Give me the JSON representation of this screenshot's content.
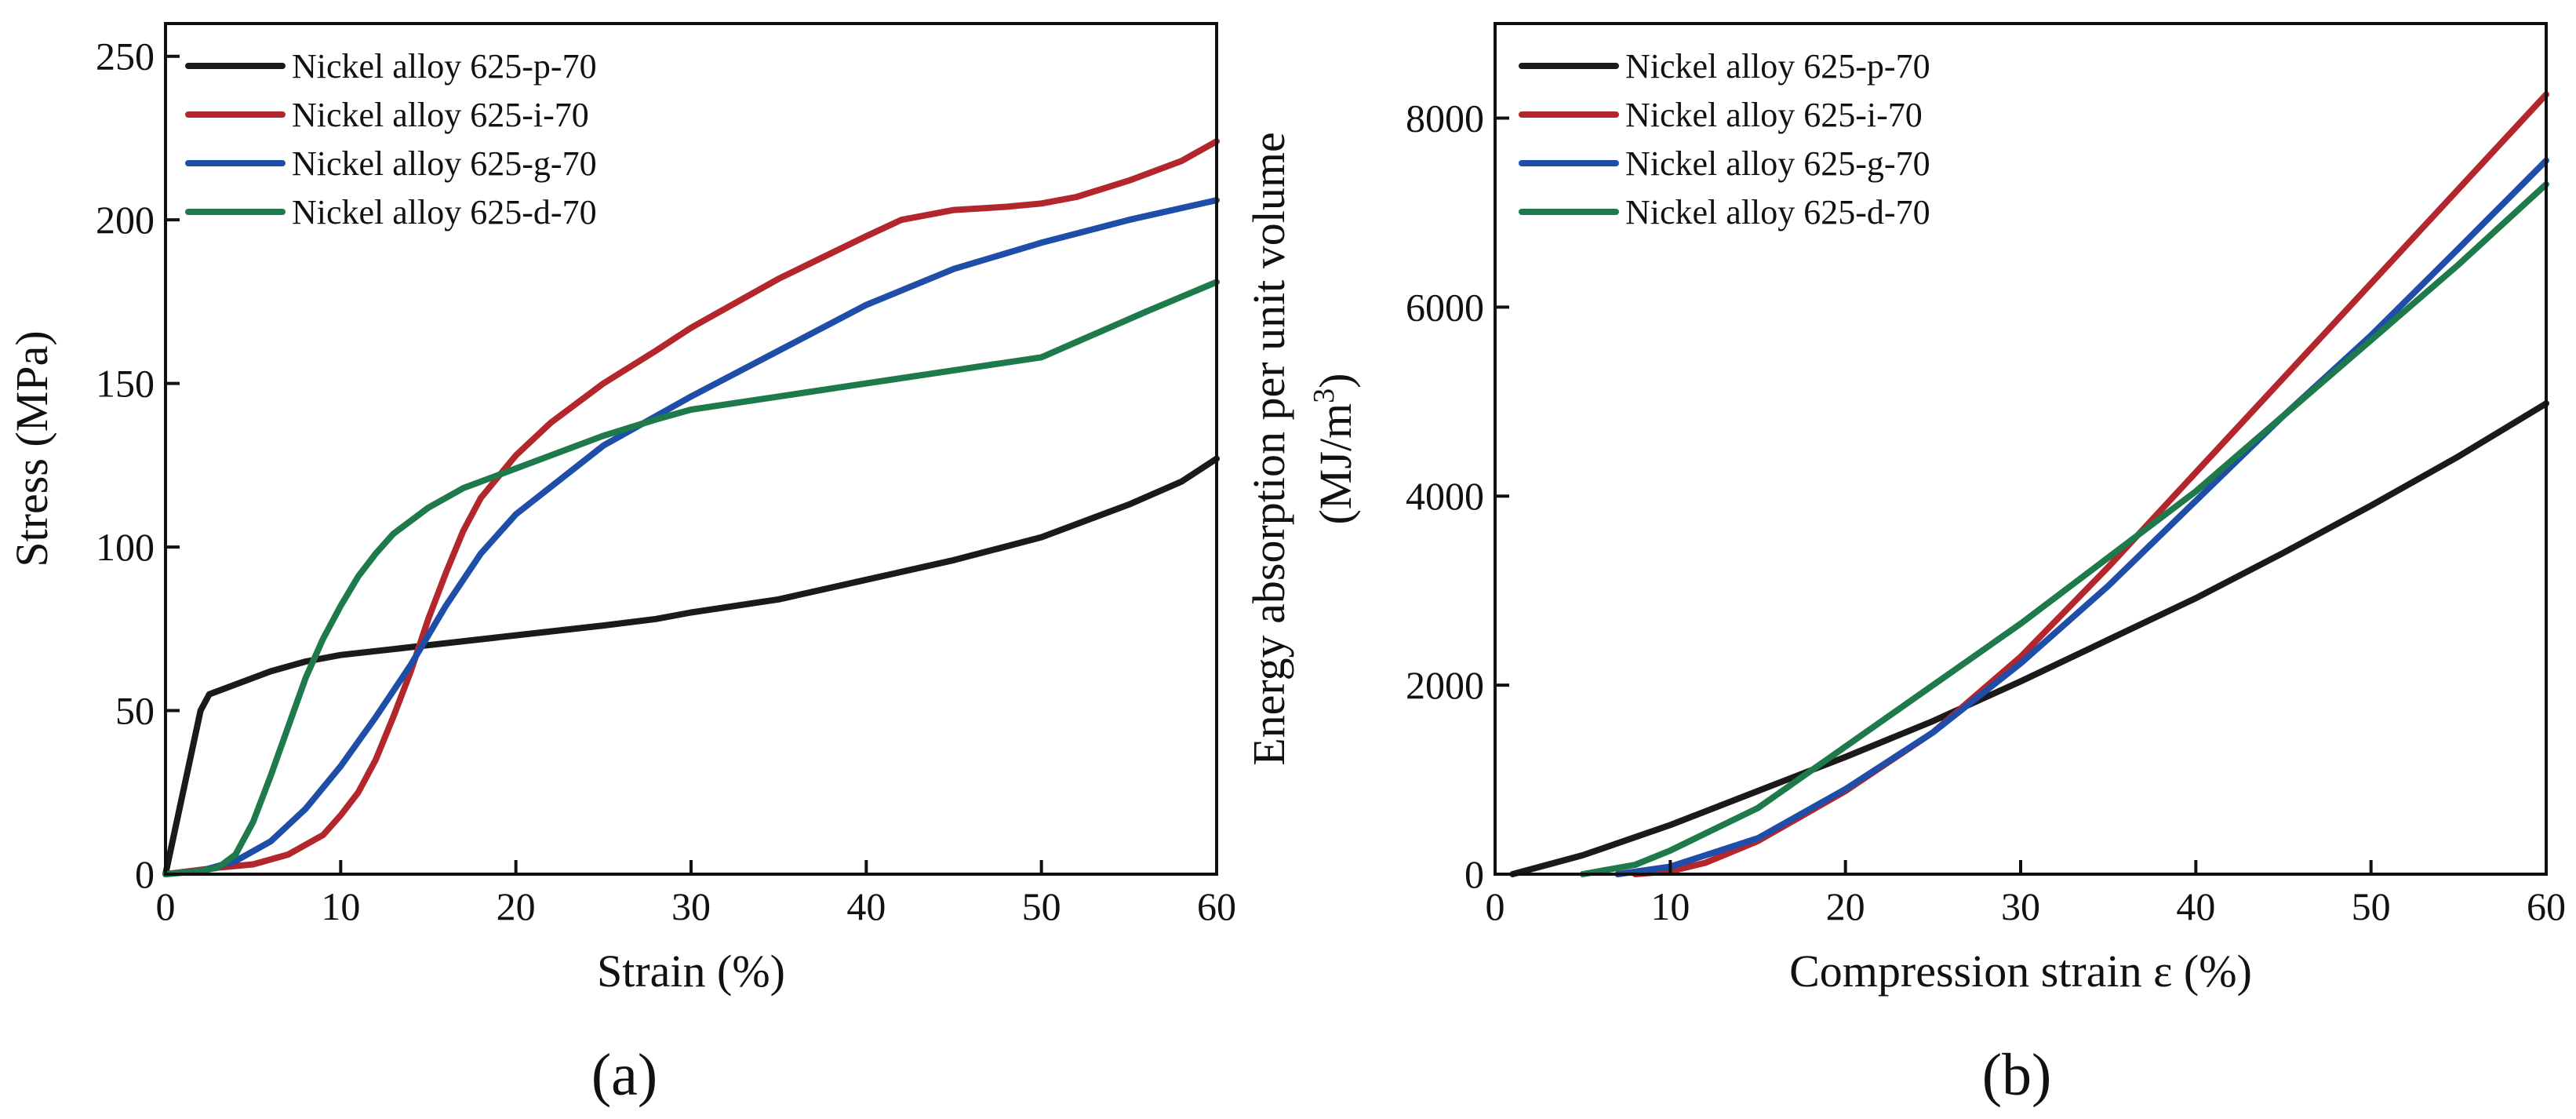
{
  "colors": {
    "p": "#1a1a1a",
    "i": "#b3262c",
    "g": "#1f4ea8",
    "d": "#1e7a4a"
  },
  "chart_data": [
    {
      "type": "line",
      "panel_label": "(a)",
      "title": "",
      "xlabel": "Strain (%)",
      "ylabel": "Stress (MPa)",
      "xlim": [
        0,
        60
      ],
      "ylim": [
        0,
        260
      ],
      "xticks": [
        0,
        10,
        20,
        30,
        40,
        50,
        60
      ],
      "yticks": [
        0,
        50,
        100,
        150,
        200,
        250
      ],
      "xtick_labels": [
        "0",
        "10",
        "20",
        "30",
        "40",
        "50",
        "60"
      ],
      "ytick_labels": [
        "0",
        "50",
        "100",
        "150",
        "200",
        "250"
      ],
      "legend_position": "top-left",
      "series": [
        {
          "key": "p",
          "name": "Nickel alloy 625-p-70",
          "x": [
            0,
            1,
            2,
            2.5,
            4,
            6,
            8,
            10,
            15,
            20,
            25,
            28,
            30,
            35,
            40,
            45,
            50,
            55,
            58,
            60
          ],
          "y": [
            0,
            25,
            50,
            55,
            58,
            62,
            65,
            67,
            70,
            73,
            76,
            78,
            80,
            84,
            90,
            96,
            103,
            113,
            120,
            127
          ]
        },
        {
          "key": "i",
          "name": "Nickel alloy 625-i-70",
          "x": [
            0,
            3,
            5,
            7,
            9,
            10,
            11,
            12,
            13,
            14,
            15,
            16,
            17,
            18,
            20,
            22,
            25,
            28,
            30,
            35,
            40,
            42,
            45,
            48,
            50,
            52,
            55,
            58,
            60
          ],
          "y": [
            0,
            2,
            3,
            6,
            12,
            18,
            25,
            35,
            48,
            62,
            78,
            92,
            105,
            115,
            128,
            138,
            150,
            160,
            167,
            182,
            195,
            200,
            203,
            204,
            205,
            207,
            212,
            218,
            224
          ]
        },
        {
          "key": "g",
          "name": "Nickel alloy 625-g-70",
          "x": [
            0,
            2,
            4,
            6,
            8,
            10,
            12,
            14,
            16,
            18,
            20,
            25,
            30,
            35,
            40,
            45,
            50,
            55,
            60
          ],
          "y": [
            0,
            1,
            4,
            10,
            20,
            33,
            48,
            64,
            82,
            98,
            110,
            131,
            146,
            160,
            174,
            185,
            193,
            200,
            206
          ]
        },
        {
          "key": "d",
          "name": "Nickel alloy 625-d-70",
          "x": [
            0,
            2,
            3,
            4,
            5,
            6,
            7,
            8,
            9,
            10,
            11,
            12,
            13,
            15,
            17,
            20,
            25,
            28,
            30,
            35,
            40,
            45,
            50,
            53,
            56,
            60
          ],
          "y": [
            0,
            1,
            2,
            6,
            16,
            30,
            45,
            60,
            72,
            82,
            91,
            98,
            104,
            112,
            118,
            124,
            134,
            139,
            142,
            146,
            150,
            154,
            158,
            165,
            172,
            181
          ]
        }
      ]
    },
    {
      "type": "line",
      "panel_label": "(b)",
      "title": "",
      "xlabel": "Compression strain ε (%)",
      "ylabel_line1": "Energy absorption per unit volume",
      "ylabel_line2": "(MJ/m",
      "ylabel_sup": "3",
      "ylabel_close": ")",
      "xlim": [
        0,
        60
      ],
      "ylim": [
        0,
        9000
      ],
      "xticks": [
        0,
        10,
        20,
        30,
        40,
        50,
        60
      ],
      "yticks": [
        0,
        2000,
        4000,
        6000,
        8000
      ],
      "xtick_labels": [
        "0",
        "10",
        "20",
        "30",
        "40",
        "50",
        "60"
      ],
      "ytick_labels": [
        "0",
        "2000",
        "4000",
        "6000",
        "8000"
      ],
      "legend_position": "top-left",
      "series": [
        {
          "key": "p",
          "name": "Nickel alloy 625-p-70",
          "x": [
            1,
            5,
            10,
            15,
            20,
            25,
            30,
            35,
            40,
            45,
            50,
            55,
            60
          ],
          "y": [
            0,
            200,
            520,
            880,
            1240,
            1620,
            2040,
            2480,
            2920,
            3400,
            3900,
            4420,
            4980
          ]
        },
        {
          "key": "i",
          "name": "Nickel alloy 625-i-70",
          "x": [
            8,
            10,
            12,
            15,
            20,
            25,
            30,
            35,
            40,
            45,
            50,
            55,
            60
          ],
          "y": [
            0,
            30,
            120,
            350,
            880,
            1500,
            2300,
            3250,
            4250,
            5250,
            6250,
            7250,
            8250
          ]
        },
        {
          "key": "g",
          "name": "Nickel alloy 625-g-70",
          "x": [
            7,
            10,
            15,
            20,
            25,
            30,
            35,
            40,
            45,
            50,
            55,
            60
          ],
          "y": [
            0,
            80,
            380,
            900,
            1500,
            2230,
            3050,
            3950,
            4850,
            5700,
            6620,
            7550
          ]
        },
        {
          "key": "d",
          "name": "Nickel alloy 625-d-70",
          "x": [
            5,
            8,
            10,
            15,
            20,
            25,
            30,
            35,
            40,
            45,
            50,
            55,
            60
          ],
          "y": [
            0,
            100,
            250,
            700,
            1350,
            2000,
            2650,
            3350,
            4050,
            4850,
            5650,
            6450,
            7300
          ]
        }
      ]
    }
  ]
}
